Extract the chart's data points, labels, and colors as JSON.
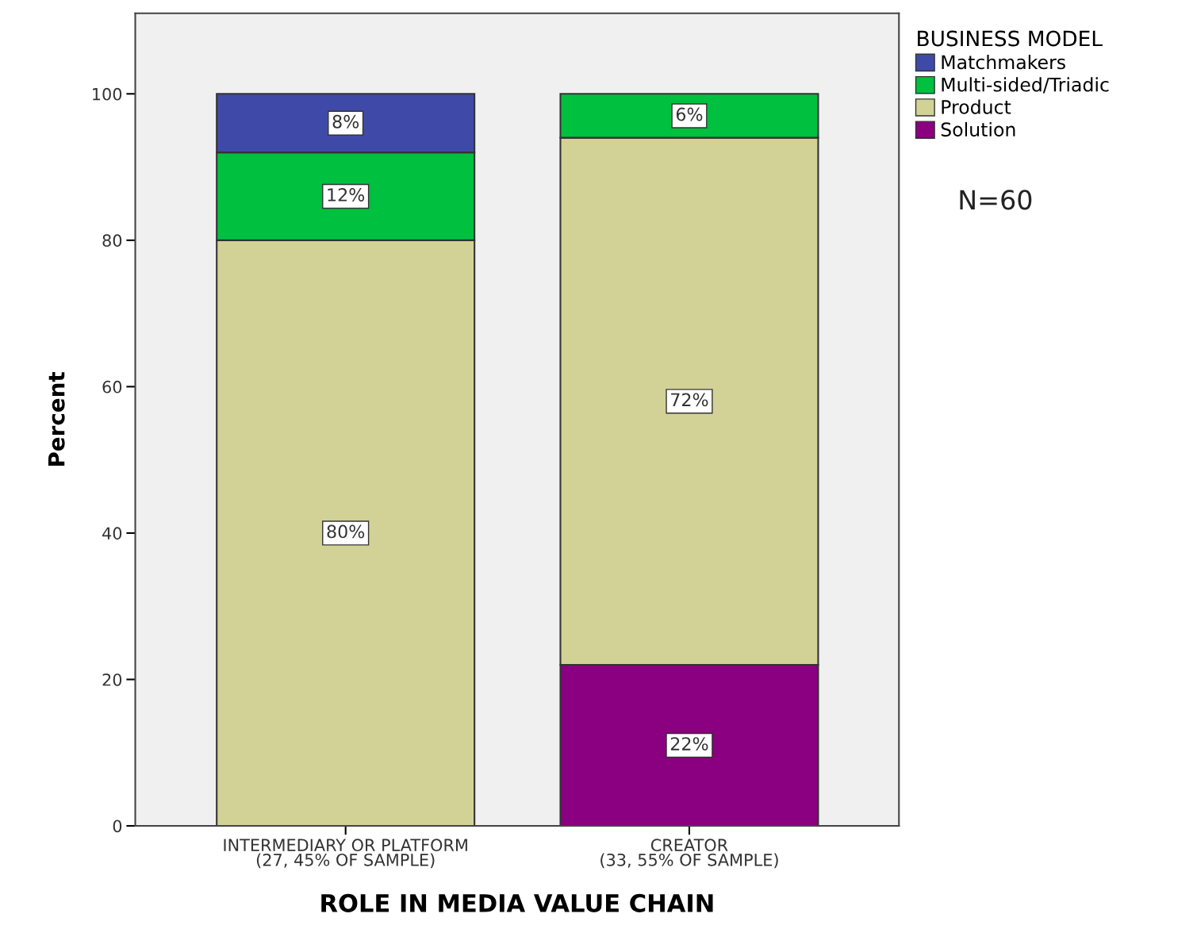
{
  "chart_data": {
    "type": "bar",
    "stacked": true,
    "xlabel": "ROLE IN MEDIA VALUE CHAIN",
    "ylabel": "Percent",
    "categories": [
      "INTERMEDIARY OR PLATFORM\n(27, 45% OF SAMPLE)",
      "CREATOR\n(33, 55% OF SAMPLE)"
    ],
    "series": [
      {
        "name": "Solution",
        "color": "#8b0080",
        "values": [
          null,
          22
        ],
        "value_labels": [
          null,
          "22%"
        ]
      },
      {
        "name": "Product",
        "color": "#d2d296",
        "values": [
          80,
          72
        ],
        "value_labels": [
          "80%",
          "72%"
        ]
      },
      {
        "name": "Multi-sided/Triadic",
        "color": "#00c040",
        "values": [
          12,
          6
        ],
        "value_labels": [
          "12%",
          "6%"
        ]
      },
      {
        "name": "Matchmakers",
        "color": "#3f4aa8",
        "values": [
          8,
          null
        ],
        "value_labels": [
          "8%",
          null
        ]
      }
    ],
    "legend_title": "BUSINESS MODEL",
    "legend": "top right",
    "annotations": [
      "N=60"
    ],
    "ylim": [
      0,
      111
    ],
    "yticks": [
      0,
      20,
      40,
      60,
      80,
      100
    ],
    "grid": false
  }
}
